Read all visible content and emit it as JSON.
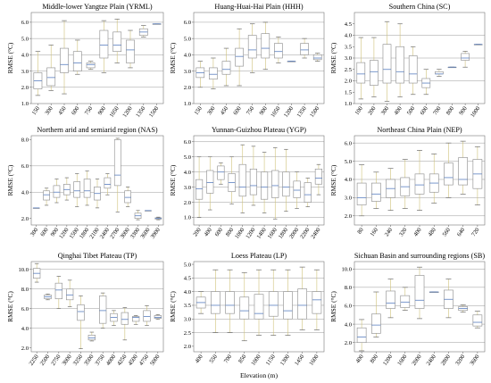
{
  "x_axis_label": "Elevation (m)",
  "chart_data": [
    {
      "type": "box",
      "title": "Middle-lower Yangtze Plain (YRML)",
      "ylabel": "RMSE (°C)",
      "ylim": [
        1.0,
        6.6
      ],
      "yticks": [
        "1.0",
        "2.0",
        "3.0",
        "4.0",
        "5.0",
        "6.0"
      ],
      "grid_values": [
        2,
        3,
        4,
        5,
        6
      ],
      "categories": [
        "150",
        "300",
        "450",
        "600",
        "750",
        "900",
        "1050",
        "1200",
        "1350",
        "1500"
      ],
      "boxes": [
        {
          "wlo": 1.5,
          "q1": 1.9,
          "med": 2.4,
          "q3": 2.9,
          "whi": 4.2
        },
        {
          "wlo": 1.8,
          "q1": 2.1,
          "med": 2.6,
          "q3": 3.2,
          "whi": 4.6
        },
        {
          "wlo": 1.6,
          "q1": 2.9,
          "med": 3.4,
          "q3": 4.4,
          "whi": 6.1
        },
        {
          "wlo": 2.8,
          "q1": 3.0,
          "med": 3.5,
          "q3": 4.2,
          "whi": 4.9
        },
        {
          "wlo": 3.1,
          "q1": 3.2,
          "med": 3.4,
          "q3": 3.5,
          "whi": 3.6
        },
        {
          "wlo": 2.9,
          "q1": 3.8,
          "med": 4.6,
          "q3": 5.5,
          "whi": 6.1
        },
        {
          "wlo": 3.5,
          "q1": 4.2,
          "med": 4.6,
          "q3": 5.4,
          "whi": 6.2
        },
        {
          "wlo": 3.2,
          "q1": 3.5,
          "med": 4.3,
          "q3": 4.9,
          "whi": 5.5
        },
        {
          "wlo": 5.1,
          "q1": 5.2,
          "med": 5.4,
          "q3": 5.6,
          "whi": 5.8
        },
        {
          "wlo": 5.9,
          "q1": 5.9,
          "med": 5.9,
          "q3": 5.9,
          "whi": 5.9
        }
      ]
    },
    {
      "type": "box",
      "title": "Huang-Huai-Hai Plain (HHH)",
      "ylabel": "RMSE (°C)",
      "ylim": [
        1.0,
        6.6
      ],
      "yticks": [
        "1.0",
        "2.0",
        "3.0",
        "4.0",
        "5.0",
        "6.0"
      ],
      "grid_values": [
        2,
        3,
        4,
        5,
        6
      ],
      "categories": [
        "150",
        "300",
        "450",
        "600",
        "750",
        "900",
        "1050",
        "1200",
        "1350",
        "1500"
      ],
      "boxes": [
        {
          "wlo": 2.0,
          "q1": 2.6,
          "med": 2.9,
          "q3": 3.2,
          "whi": 3.6
        },
        {
          "wlo": 1.9,
          "q1": 2.5,
          "med": 2.8,
          "q3": 3.2,
          "whi": 3.8
        },
        {
          "wlo": 2.1,
          "q1": 2.8,
          "med": 3.1,
          "q3": 3.6,
          "whi": 4.4
        },
        {
          "wlo": 2.1,
          "q1": 3.3,
          "med": 3.9,
          "q3": 4.4,
          "whi": 5.6
        },
        {
          "wlo": 2.9,
          "q1": 3.8,
          "med": 4.3,
          "q3": 5.2,
          "whi": 5.9
        },
        {
          "wlo": 3.1,
          "q1": 3.8,
          "med": 4.4,
          "q3": 5.3,
          "whi": 6.0
        },
        {
          "wlo": 3.5,
          "q1": 3.8,
          "med": 4.2,
          "q3": 4.7,
          "whi": 5.1
        },
        {
          "wlo": 3.6,
          "q1": 3.6,
          "med": 3.6,
          "q3": 3.6,
          "whi": 3.6
        },
        {
          "wlo": 3.8,
          "q1": 4.0,
          "med": 4.3,
          "q3": 4.7,
          "whi": 5.0
        },
        {
          "wlo": 3.6,
          "q1": 3.7,
          "med": 3.8,
          "q3": 4.0,
          "whi": 4.1
        }
      ]
    },
    {
      "type": "box",
      "title": "Southern China (SC)",
      "ylabel": "RMSE (°C)",
      "ylim": [
        1.0,
        5.0
      ],
      "yticks": [
        "1.0",
        "1.5",
        "2.0",
        "2.5",
        "3.0",
        "3.5",
        "4.0",
        "4.5"
      ],
      "grid_values": [
        2,
        3,
        4
      ],
      "categories": [
        "100",
        "200",
        "300",
        "400",
        "500",
        "600",
        "700",
        "800",
        "900",
        "1000"
      ],
      "boxes": [
        {
          "wlo": 1.2,
          "q1": 1.9,
          "med": 2.3,
          "q3": 2.8,
          "whi": 3.9
        },
        {
          "wlo": 1.3,
          "q1": 1.8,
          "med": 2.4,
          "q3": 2.9,
          "whi": 3.9
        },
        {
          "wlo": 1.1,
          "q1": 1.9,
          "med": 2.5,
          "q3": 3.6,
          "whi": 4.6
        },
        {
          "wlo": 1.3,
          "q1": 1.9,
          "med": 2.4,
          "q3": 3.5,
          "whi": 4.5
        },
        {
          "wlo": 1.4,
          "q1": 1.9,
          "med": 2.3,
          "q3": 3.1,
          "whi": 3.5
        },
        {
          "wlo": 1.4,
          "q1": 1.7,
          "med": 1.9,
          "q3": 2.1,
          "whi": 2.5
        },
        {
          "wlo": 2.2,
          "q1": 2.3,
          "med": 2.3,
          "q3": 2.4,
          "whi": 2.5
        },
        {
          "wlo": 2.6,
          "q1": 2.6,
          "med": 2.6,
          "q3": 2.6,
          "whi": 2.6
        },
        {
          "wlo": 2.6,
          "q1": 2.9,
          "med": 3.0,
          "q3": 3.2,
          "whi": 3.3
        },
        {
          "wlo": 3.6,
          "q1": 3.6,
          "med": 3.6,
          "q3": 3.6,
          "whi": 3.6
        }
      ]
    },
    {
      "type": "box",
      "title": "Northern arid and semiarid region (NAS)",
      "ylabel": "RMSE (°C)",
      "ylim": [
        1.5,
        8.3
      ],
      "yticks": [
        "2.0",
        "4.0",
        "6.0",
        "8.0"
      ],
      "grid_values": [
        4,
        6
      ],
      "categories": [
        "300",
        "600",
        "900",
        "1200",
        "1500",
        "1800",
        "2100",
        "2400",
        "2700",
        "3000",
        "3300",
        "3600",
        "3900"
      ],
      "boxes": [
        {
          "wlo": 2.8,
          "q1": 2.8,
          "med": 2.8,
          "q3": 2.8,
          "whi": 2.8
        },
        {
          "wlo": 3.0,
          "q1": 3.4,
          "med": 3.8,
          "q3": 4.1,
          "whi": 4.3
        },
        {
          "wlo": 3.2,
          "q1": 3.6,
          "med": 4.0,
          "q3": 4.5,
          "whi": 5.0
        },
        {
          "wlo": 3.4,
          "q1": 3.8,
          "med": 4.2,
          "q3": 4.6,
          "whi": 5.1
        },
        {
          "wlo": 2.9,
          "q1": 3.6,
          "med": 4.1,
          "q3": 4.8,
          "whi": 5.4
        },
        {
          "wlo": 3.0,
          "q1": 3.6,
          "med": 4.1,
          "q3": 5.0,
          "whi": 5.6
        },
        {
          "wlo": 2.8,
          "q1": 3.4,
          "med": 3.9,
          "q3": 4.4,
          "whi": 5.0
        },
        {
          "wlo": 3.8,
          "q1": 4.3,
          "med": 4.6,
          "q3": 5.1,
          "whi": 5.4
        },
        {
          "wlo": 2.5,
          "q1": 4.5,
          "med": 5.3,
          "q3": 8.0,
          "whi": 8.1
        },
        {
          "wlo": 2.9,
          "q1": 3.2,
          "med": 3.6,
          "q3": 4.1,
          "whi": 4.4
        },
        {
          "wlo": 1.9,
          "q1": 2.0,
          "med": 2.2,
          "q3": 2.4,
          "whi": 2.6
        },
        {
          "wlo": 2.6,
          "q1": 2.6,
          "med": 2.6,
          "q3": 2.6,
          "whi": 2.6
        },
        {
          "wlo": 1.9,
          "q1": 1.95,
          "med": 2.0,
          "q3": 2.05,
          "whi": 2.1
        }
      ]
    },
    {
      "type": "box",
      "title": "Yunnan-Guizhou Plateau (YGP)",
      "ylabel": "RMSE (°C)",
      "ylim": [
        0.5,
        6.4
      ],
      "yticks": [
        "1.0",
        "2.0",
        "3.0",
        "4.0",
        "5.0",
        "6.0"
      ],
      "grid_values": [
        1,
        2,
        3,
        4,
        5,
        6
      ],
      "categories": [
        "200",
        "400",
        "600",
        "800",
        "1000",
        "1200",
        "1400",
        "1600",
        "1800",
        "2000",
        "2200",
        "2400"
      ],
      "boxes": [
        {
          "wlo": 1.0,
          "q1": 2.2,
          "med": 2.9,
          "q3": 3.5,
          "whi": 5.0
        },
        {
          "wlo": 1.5,
          "q1": 2.6,
          "med": 3.3,
          "q3": 4.1,
          "whi": 5.0
        },
        {
          "wlo": 3.2,
          "q1": 3.5,
          "med": 4.0,
          "q3": 4.4,
          "whi": 4.6
        },
        {
          "wlo": 1.9,
          "q1": 2.7,
          "med": 3.3,
          "q3": 3.9,
          "whi": 5.0
        },
        {
          "wlo": 1.3,
          "q1": 2.4,
          "med": 3.0,
          "q3": 4.5,
          "whi": 5.8
        },
        {
          "wlo": 1.8,
          "q1": 2.5,
          "med": 3.1,
          "q3": 4.2,
          "whi": 5.7
        },
        {
          "wlo": 1.3,
          "q1": 2.2,
          "med": 3.0,
          "q3": 4.0,
          "whi": 5.3
        },
        {
          "wlo": 0.9,
          "q1": 2.3,
          "med": 3.1,
          "q3": 4.1,
          "whi": 5.6
        },
        {
          "wlo": 1.4,
          "q1": 2.4,
          "med": 3.0,
          "q3": 4.0,
          "whi": 5.5
        },
        {
          "wlo": 1.6,
          "q1": 2.3,
          "med": 2.8,
          "q3": 3.4,
          "whi": 4.0
        },
        {
          "wlo": 1.7,
          "q1": 2.0,
          "med": 2.5,
          "q3": 3.3,
          "whi": 3.6
        },
        {
          "wlo": 2.5,
          "q1": 3.2,
          "med": 3.6,
          "q3": 4.2,
          "whi": 4.5
        }
      ]
    },
    {
      "type": "box",
      "title": "Northeast China Plain (NEP)",
      "ylabel": "RMSE (°C)",
      "ylim": [
        1.5,
        6.4
      ],
      "yticks": [
        "2.0",
        "3.0",
        "4.0",
        "5.0",
        "6.0"
      ],
      "grid_values": [
        2,
        3,
        4,
        5,
        6
      ],
      "categories": [
        "80",
        "160",
        "240",
        "320",
        "400",
        "480",
        "560",
        "640",
        "720"
      ],
      "boxes": [
        {
          "wlo": 2.0,
          "q1": 2.6,
          "med": 3.0,
          "q3": 3.8,
          "whi": 4.8
        },
        {
          "wlo": 2.4,
          "q1": 2.8,
          "med": 3.2,
          "q3": 3.8,
          "whi": 4.4
        },
        {
          "wlo": 2.3,
          "q1": 3.0,
          "med": 3.5,
          "q3": 4.0,
          "whi": 4.6
        },
        {
          "wlo": 2.4,
          "q1": 3.1,
          "med": 3.6,
          "q3": 4.1,
          "whi": 5.1
        },
        {
          "wlo": 2.3,
          "q1": 3.2,
          "med": 3.7,
          "q3": 4.3,
          "whi": 5.6
        },
        {
          "wlo": 2.7,
          "q1": 3.3,
          "med": 3.8,
          "q3": 4.3,
          "whi": 5.4
        },
        {
          "wlo": 3.0,
          "q1": 3.7,
          "med": 4.1,
          "q3": 4.9,
          "whi": 6.0
        },
        {
          "wlo": 3.2,
          "q1": 3.7,
          "med": 4.0,
          "q3": 5.2,
          "whi": 6.1
        },
        {
          "wlo": 2.6,
          "q1": 3.5,
          "med": 4.3,
          "q3": 5.1,
          "whi": 5.8
        }
      ]
    },
    {
      "type": "box",
      "title": "Qinghai Tibet Plateau (TP)",
      "ylabel": "RMSE (°C)",
      "ylim": [
        1.6,
        10.8
      ],
      "yticks": [
        "2.0",
        "4.0",
        "6.0",
        "8.0",
        "10.0"
      ],
      "grid_values": [
        4,
        6,
        8,
        10
      ],
      "categories": [
        "2250",
        "2500",
        "2750",
        "3000",
        "3250",
        "3500",
        "3750",
        "4000",
        "4250",
        "4500",
        "4750",
        "5000"
      ],
      "boxes": [
        {
          "wlo": 8.7,
          "q1": 9.1,
          "med": 9.6,
          "q3": 10.1,
          "whi": 10.6
        },
        {
          "wlo": 6.9,
          "q1": 7.0,
          "med": 7.2,
          "q3": 7.4,
          "whi": 7.5
        },
        {
          "wlo": 6.0,
          "q1": 7.0,
          "med": 7.9,
          "q3": 8.6,
          "whi": 9.3
        },
        {
          "wlo": 6.2,
          "q1": 6.9,
          "med": 7.4,
          "q3": 8.0,
          "whi": 8.9
        },
        {
          "wlo": 1.9,
          "q1": 4.8,
          "med": 5.7,
          "q3": 6.4,
          "whi": 7.3
        },
        {
          "wlo": 2.7,
          "q1": 2.8,
          "med": 3.0,
          "q3": 3.3,
          "whi": 3.6
        },
        {
          "wlo": 4.0,
          "q1": 4.5,
          "med": 5.8,
          "q3": 7.3,
          "whi": 7.6
        },
        {
          "wlo": 4.3,
          "q1": 4.7,
          "med": 5.1,
          "q3": 5.5,
          "whi": 5.8
        },
        {
          "wlo": 2.8,
          "q1": 4.4,
          "med": 4.9,
          "q3": 5.6,
          "whi": 6.1
        },
        {
          "wlo": 4.4,
          "q1": 4.7,
          "med": 5.1,
          "q3": 5.2,
          "whi": 5.3
        },
        {
          "wlo": 4.3,
          "q1": 4.7,
          "med": 5.2,
          "q3": 5.8,
          "whi": 6.3
        },
        {
          "wlo": 4.9,
          "q1": 5.0,
          "med": 5.1,
          "q3": 5.3,
          "whi": 5.4
        }
      ]
    },
    {
      "type": "box",
      "title": "Loess Plateau (LP)",
      "ylabel": "RMSE (°C)",
      "ylim": [
        1.8,
        5.1
      ],
      "yticks": [
        "2.0",
        "2.5",
        "3.0",
        "3.5",
        "4.0",
        "4.5",
        "5.0"
      ],
      "grid_values": [
        2.5,
        3.0,
        3.5,
        4.0,
        4.5
      ],
      "categories": [
        "400",
        "550",
        "700",
        "850",
        "1000",
        "1150",
        "1300",
        "1450",
        "1600"
      ],
      "boxes": [
        {
          "wlo": 3.2,
          "q1": 3.4,
          "med": 3.6,
          "q3": 3.8,
          "whi": 4.0
        },
        {
          "wlo": 2.5,
          "q1": 3.2,
          "med": 3.5,
          "q3": 4.0,
          "whi": 4.8
        },
        {
          "wlo": 2.5,
          "q1": 3.2,
          "med": 3.5,
          "q3": 4.0,
          "whi": 4.8
        },
        {
          "wlo": 2.2,
          "q1": 3.0,
          "med": 3.3,
          "q3": 3.8,
          "whi": 4.7
        },
        {
          "wlo": 2.4,
          "q1": 3.0,
          "med": 3.2,
          "q3": 3.9,
          "whi": 4.8
        },
        {
          "wlo": 2.4,
          "q1": 3.1,
          "med": 3.5,
          "q3": 4.0,
          "whi": 4.8
        },
        {
          "wlo": 2.4,
          "q1": 3.0,
          "med": 3.3,
          "q3": 4.0,
          "whi": 4.8
        },
        {
          "wlo": 2.6,
          "q1": 3.0,
          "med": 3.5,
          "q3": 4.1,
          "whi": 4.9
        },
        {
          "wlo": 2.6,
          "q1": 3.2,
          "med": 3.7,
          "q3": 4.0,
          "whi": 4.8
        }
      ]
    },
    {
      "type": "box",
      "title": "Sichuan Basin and surrounding regions (SB)",
      "ylabel": "RMSE (°C)",
      "ylim": [
        1.0,
        10.8
      ],
      "yticks": [
        "2.0",
        "4.0",
        "6.0",
        "8.0",
        "10.0"
      ],
      "grid_values": [
        2,
        4,
        6,
        8,
        10
      ],
      "categories": [
        "400",
        "800",
        "1200",
        "1600",
        "2000",
        "2400",
        "2800",
        "3200",
        "3600"
      ],
      "boxes": [
        {
          "wlo": 1.1,
          "q1": 2.0,
          "med": 2.6,
          "q3": 3.6,
          "whi": 4.5
        },
        {
          "wlo": 2.6,
          "q1": 3.0,
          "med": 3.9,
          "q3": 5.1,
          "whi": 7.5
        },
        {
          "wlo": 4.7,
          "q1": 5.7,
          "med": 6.3,
          "q3": 7.6,
          "whi": 8.9
        },
        {
          "wlo": 5.5,
          "q1": 5.8,
          "med": 6.4,
          "q3": 7.1,
          "whi": 8.0
        },
        {
          "wlo": 4.6,
          "q1": 5.7,
          "med": 6.6,
          "q3": 9.3,
          "whi": 10.2
        },
        {
          "wlo": 7.5,
          "q1": 7.5,
          "med": 7.5,
          "q3": 7.5,
          "whi": 7.5
        },
        {
          "wlo": 4.7,
          "q1": 5.7,
          "med": 6.7,
          "q3": 7.7,
          "whi": 8.9
        },
        {
          "wlo": 5.3,
          "q1": 5.5,
          "med": 5.7,
          "q3": 5.9,
          "whi": 6.1
        },
        {
          "wlo": 3.6,
          "q1": 3.8,
          "med": 4.2,
          "q3": 5.0,
          "whi": 5.4
        }
      ]
    }
  ]
}
